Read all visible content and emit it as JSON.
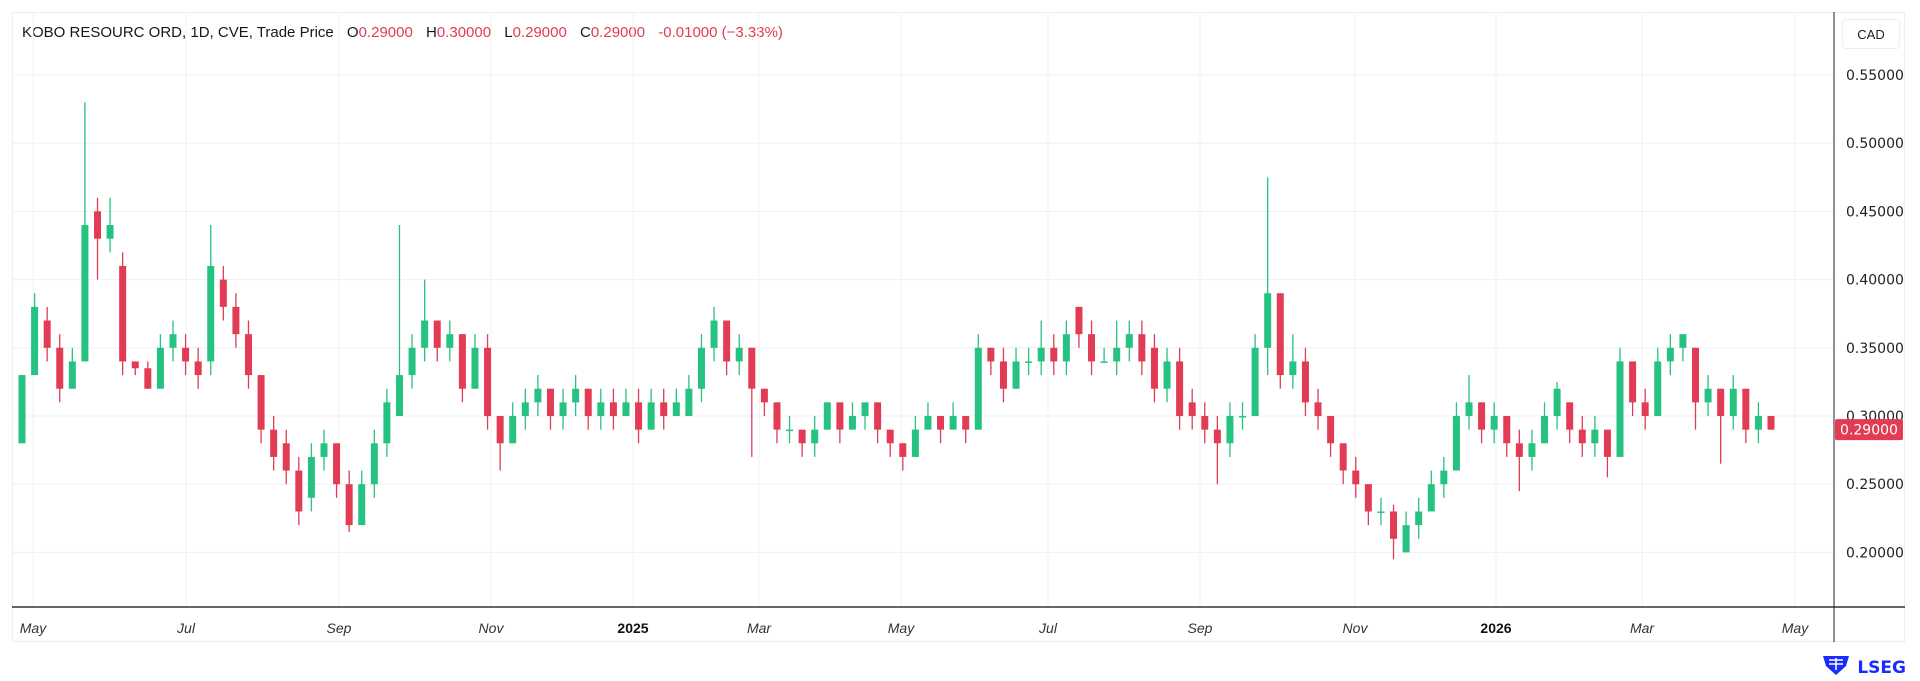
{
  "header": {
    "symbol": "KOBO RESOURC ORD, 1D, CVE, Trade Price",
    "open_label": "O",
    "open": "0.29000",
    "high_label": "H",
    "high": "0.30000",
    "low_label": "L",
    "low": "0.29000",
    "close_label": "C",
    "close": "0.29000",
    "change": "-0.01000 (−3.33%)"
  },
  "currency_button": "CAD",
  "last_price_label": "0.29000",
  "logo_text": "LSEG",
  "colors": {
    "up": "#26c281",
    "down": "#e23b54",
    "grid": "#f0f0f0",
    "last_price_bg": "#e23b54"
  },
  "chart_data": {
    "type": "candlestick",
    "ylim": [
      0.15,
      0.57
    ],
    "grid": true,
    "last_price": 0.29,
    "y_ticks": [
      "0.55000",
      "0.50000",
      "0.45000",
      "0.40000",
      "0.35000",
      "0.30000",
      "0.25000",
      "0.20000"
    ],
    "y_tick_values": [
      0.55,
      0.5,
      0.45,
      0.4,
      0.35,
      0.3,
      0.25,
      0.2
    ],
    "x_ticks": [
      "May",
      "Jul",
      "Sep",
      "Nov",
      "2025",
      "Mar",
      "May",
      "Jul",
      "Sep",
      "Nov",
      "2026",
      "Mar",
      "May"
    ],
    "candles_ohlc": [
      [
        0.28,
        0.33,
        0.28,
        0.33
      ],
      [
        0.33,
        0.39,
        0.33,
        0.38
      ],
      [
        0.37,
        0.38,
        0.34,
        0.35
      ],
      [
        0.35,
        0.36,
        0.31,
        0.32
      ],
      [
        0.32,
        0.35,
        0.32,
        0.34
      ],
      [
        0.34,
        0.53,
        0.34,
        0.44
      ],
      [
        0.45,
        0.46,
        0.4,
        0.43
      ],
      [
        0.43,
        0.46,
        0.42,
        0.44
      ],
      [
        0.41,
        0.42,
        0.33,
        0.34
      ],
      [
        0.34,
        0.34,
        0.33,
        0.335
      ],
      [
        0.335,
        0.34,
        0.32,
        0.32
      ],
      [
        0.32,
        0.36,
        0.32,
        0.35
      ],
      [
        0.35,
        0.37,
        0.34,
        0.36
      ],
      [
        0.35,
        0.36,
        0.33,
        0.34
      ],
      [
        0.34,
        0.35,
        0.32,
        0.33
      ],
      [
        0.34,
        0.44,
        0.33,
        0.41
      ],
      [
        0.4,
        0.41,
        0.37,
        0.38
      ],
      [
        0.38,
        0.39,
        0.35,
        0.36
      ],
      [
        0.36,
        0.37,
        0.32,
        0.33
      ],
      [
        0.33,
        0.33,
        0.28,
        0.29
      ],
      [
        0.29,
        0.3,
        0.26,
        0.27
      ],
      [
        0.28,
        0.29,
        0.25,
        0.26
      ],
      [
        0.26,
        0.27,
        0.22,
        0.23
      ],
      [
        0.24,
        0.28,
        0.23,
        0.27
      ],
      [
        0.27,
        0.29,
        0.26,
        0.28
      ],
      [
        0.28,
        0.28,
        0.24,
        0.25
      ],
      [
        0.25,
        0.26,
        0.215,
        0.22
      ],
      [
        0.22,
        0.26,
        0.22,
        0.25
      ],
      [
        0.25,
        0.29,
        0.24,
        0.28
      ],
      [
        0.28,
        0.32,
        0.27,
        0.31
      ],
      [
        0.3,
        0.44,
        0.3,
        0.33
      ],
      [
        0.33,
        0.36,
        0.32,
        0.35
      ],
      [
        0.35,
        0.4,
        0.34,
        0.37
      ],
      [
        0.37,
        0.37,
        0.34,
        0.35
      ],
      [
        0.35,
        0.37,
        0.34,
        0.36
      ],
      [
        0.36,
        0.36,
        0.31,
        0.32
      ],
      [
        0.32,
        0.36,
        0.32,
        0.35
      ],
      [
        0.35,
        0.36,
        0.29,
        0.3
      ],
      [
        0.3,
        0.3,
        0.26,
        0.28
      ],
      [
        0.28,
        0.31,
        0.28,
        0.3
      ],
      [
        0.3,
        0.32,
        0.29,
        0.31
      ],
      [
        0.31,
        0.33,
        0.3,
        0.32
      ],
      [
        0.32,
        0.32,
        0.29,
        0.3
      ],
      [
        0.3,
        0.32,
        0.29,
        0.31
      ],
      [
        0.31,
        0.33,
        0.3,
        0.32
      ],
      [
        0.32,
        0.32,
        0.29,
        0.3
      ],
      [
        0.3,
        0.32,
        0.29,
        0.31
      ],
      [
        0.31,
        0.32,
        0.29,
        0.3
      ],
      [
        0.3,
        0.32,
        0.3,
        0.31
      ],
      [
        0.31,
        0.32,
        0.28,
        0.29
      ],
      [
        0.29,
        0.32,
        0.29,
        0.31
      ],
      [
        0.31,
        0.32,
        0.29,
        0.3
      ],
      [
        0.3,
        0.32,
        0.3,
        0.31
      ],
      [
        0.3,
        0.33,
        0.3,
        0.32
      ],
      [
        0.32,
        0.36,
        0.31,
        0.35
      ],
      [
        0.35,
        0.38,
        0.34,
        0.37
      ],
      [
        0.37,
        0.37,
        0.33,
        0.34
      ],
      [
        0.34,
        0.36,
        0.33,
        0.35
      ],
      [
        0.35,
        0.35,
        0.27,
        0.32
      ],
      [
        0.32,
        0.32,
        0.3,
        0.31
      ],
      [
        0.31,
        0.31,
        0.28,
        0.29
      ],
      [
        0.29,
        0.3,
        0.28,
        0.29
      ],
      [
        0.29,
        0.29,
        0.27,
        0.28
      ],
      [
        0.28,
        0.3,
        0.27,
        0.29
      ],
      [
        0.29,
        0.31,
        0.29,
        0.31
      ],
      [
        0.31,
        0.31,
        0.28,
        0.29
      ],
      [
        0.29,
        0.31,
        0.29,
        0.3
      ],
      [
        0.3,
        0.31,
        0.29,
        0.31
      ],
      [
        0.31,
        0.31,
        0.28,
        0.29
      ],
      [
        0.29,
        0.29,
        0.27,
        0.28
      ],
      [
        0.28,
        0.28,
        0.26,
        0.27
      ],
      [
        0.27,
        0.3,
        0.27,
        0.29
      ],
      [
        0.29,
        0.31,
        0.29,
        0.3
      ],
      [
        0.3,
        0.3,
        0.28,
        0.29
      ],
      [
        0.29,
        0.31,
        0.29,
        0.3
      ],
      [
        0.3,
        0.3,
        0.28,
        0.29
      ],
      [
        0.29,
        0.36,
        0.29,
        0.35
      ],
      [
        0.35,
        0.35,
        0.33,
        0.34
      ],
      [
        0.34,
        0.35,
        0.31,
        0.32
      ],
      [
        0.32,
        0.35,
        0.32,
        0.34
      ],
      [
        0.34,
        0.35,
        0.33,
        0.34
      ],
      [
        0.34,
        0.37,
        0.33,
        0.35
      ],
      [
        0.35,
        0.36,
        0.33,
        0.34
      ],
      [
        0.34,
        0.37,
        0.33,
        0.36
      ],
      [
        0.38,
        0.38,
        0.35,
        0.36
      ],
      [
        0.36,
        0.37,
        0.33,
        0.34
      ],
      [
        0.34,
        0.35,
        0.34,
        0.34
      ],
      [
        0.34,
        0.37,
        0.33,
        0.35
      ],
      [
        0.35,
        0.37,
        0.34,
        0.36
      ],
      [
        0.36,
        0.37,
        0.33,
        0.34
      ],
      [
        0.35,
        0.36,
        0.31,
        0.32
      ],
      [
        0.32,
        0.35,
        0.31,
        0.34
      ],
      [
        0.34,
        0.35,
        0.29,
        0.3
      ],
      [
        0.31,
        0.32,
        0.29,
        0.3
      ],
      [
        0.3,
        0.31,
        0.28,
        0.29
      ],
      [
        0.29,
        0.3,
        0.25,
        0.28
      ],
      [
        0.28,
        0.31,
        0.27,
        0.3
      ],
      [
        0.3,
        0.31,
        0.29,
        0.3
      ],
      [
        0.3,
        0.36,
        0.3,
        0.35
      ],
      [
        0.35,
        0.475,
        0.33,
        0.39
      ],
      [
        0.39,
        0.39,
        0.32,
        0.33
      ],
      [
        0.33,
        0.36,
        0.32,
        0.34
      ],
      [
        0.34,
        0.35,
        0.3,
        0.31
      ],
      [
        0.31,
        0.32,
        0.29,
        0.3
      ],
      [
        0.3,
        0.3,
        0.27,
        0.28
      ],
      [
        0.28,
        0.28,
        0.25,
        0.26
      ],
      [
        0.26,
        0.27,
        0.24,
        0.25
      ],
      [
        0.25,
        0.25,
        0.22,
        0.23
      ],
      [
        0.23,
        0.24,
        0.22,
        0.23
      ],
      [
        0.23,
        0.235,
        0.195,
        0.21
      ],
      [
        0.2,
        0.23,
        0.2,
        0.22
      ],
      [
        0.22,
        0.24,
        0.21,
        0.23
      ],
      [
        0.23,
        0.26,
        0.23,
        0.25
      ],
      [
        0.25,
        0.27,
        0.24,
        0.26
      ],
      [
        0.26,
        0.31,
        0.26,
        0.3
      ],
      [
        0.3,
        0.33,
        0.29,
        0.31
      ],
      [
        0.31,
        0.31,
        0.28,
        0.29
      ],
      [
        0.29,
        0.31,
        0.28,
        0.3
      ],
      [
        0.3,
        0.3,
        0.27,
        0.28
      ],
      [
        0.28,
        0.29,
        0.245,
        0.27
      ],
      [
        0.27,
        0.29,
        0.26,
        0.28
      ],
      [
        0.28,
        0.31,
        0.28,
        0.3
      ],
      [
        0.3,
        0.325,
        0.29,
        0.32
      ],
      [
        0.31,
        0.31,
        0.28,
        0.29
      ],
      [
        0.29,
        0.3,
        0.27,
        0.28
      ],
      [
        0.28,
        0.3,
        0.27,
        0.29
      ],
      [
        0.29,
        0.29,
        0.255,
        0.27
      ],
      [
        0.27,
        0.35,
        0.27,
        0.34
      ],
      [
        0.34,
        0.34,
        0.3,
        0.31
      ],
      [
        0.31,
        0.32,
        0.29,
        0.3
      ],
      [
        0.3,
        0.35,
        0.3,
        0.34
      ],
      [
        0.34,
        0.36,
        0.33,
        0.35
      ],
      [
        0.35,
        0.36,
        0.34,
        0.36
      ],
      [
        0.35,
        0.35,
        0.29,
        0.31
      ],
      [
        0.31,
        0.33,
        0.3,
        0.32
      ],
      [
        0.32,
        0.32,
        0.265,
        0.3
      ],
      [
        0.3,
        0.33,
        0.29,
        0.32
      ],
      [
        0.32,
        0.32,
        0.28,
        0.29
      ],
      [
        0.29,
        0.31,
        0.28,
        0.3
      ],
      [
        0.3,
        0.3,
        0.29,
        0.29
      ]
    ]
  }
}
